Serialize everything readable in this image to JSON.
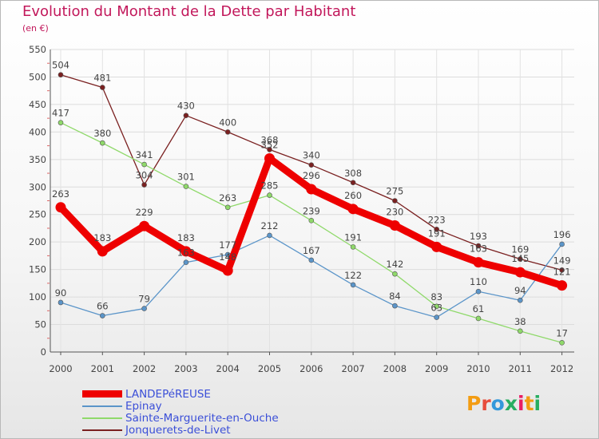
{
  "title": "Evolution du Montant de la Dette par Habitant",
  "unit": "(en €)",
  "brand": {
    "text": "Proxiti",
    "letter_colors": [
      "#f39c12",
      "#e74c3c",
      "#3498db",
      "#27ae60",
      "#e91e63",
      "#f39c12",
      "#27ae60"
    ]
  },
  "chart_data": {
    "type": "line",
    "title": "Evolution du Montant de la Dette par Habitant",
    "ylabel": "(en €)",
    "xlabel": "",
    "ylim": [
      0,
      550
    ],
    "yticks": [
      0,
      50,
      100,
      150,
      200,
      250,
      300,
      350,
      400,
      450,
      500,
      550
    ],
    "categories": [
      "2000",
      "2001",
      "2002",
      "2003",
      "2004",
      "2005",
      "2006",
      "2007",
      "2008",
      "2009",
      "2010",
      "2011",
      "2012"
    ],
    "series": [
      {
        "name": "Jonquerets-de-Livet",
        "color": "#7a2020",
        "emphasis": false,
        "values": [
          504,
          481,
          304,
          430,
          400,
          368,
          340,
          308,
          275,
          223,
          193,
          169,
          149
        ]
      },
      {
        "name": "Sainte-Marguerite-en-Ouche",
        "color": "#8fd96a",
        "emphasis": false,
        "values": [
          417,
          380,
          341,
          301,
          263,
          285,
          239,
          191,
          142,
          83,
          61,
          38,
          17
        ]
      },
      {
        "name": "Epinay",
        "color": "#5b95c9",
        "emphasis": false,
        "values": [
          90,
          66,
          79,
          163,
          177,
          212,
          167,
          122,
          84,
          63,
          110,
          94,
          196
        ]
      },
      {
        "name": "LANDEPéREUSE",
        "color": "#ee0000",
        "emphasis": true,
        "values": [
          263,
          183,
          229,
          183,
          148,
          352,
          296,
          260,
          230,
          191,
          163,
          145,
          121
        ]
      }
    ],
    "data_labels": [
      [
        "504",
        "481",
        "304",
        "430",
        "400",
        "368",
        "340",
        "308",
        "275",
        "223",
        "193",
        "169",
        "149"
      ],
      [
        "417",
        "380",
        "341",
        "301",
        "263",
        "285",
        "239",
        "191",
        "142",
        "83",
        "61",
        "38",
        "17"
      ],
      [
        "90",
        "66",
        "79",
        "163",
        "177",
        "212",
        "167",
        "122",
        "84",
        "63",
        "110",
        "94",
        "196"
      ],
      [
        "263",
        "183",
        "229",
        "183",
        "148",
        "352",
        "296",
        "260",
        "230",
        "191",
        "163",
        "145",
        "121"
      ]
    ],
    "legend": [
      "LANDEPéREUSE",
      "Epinay",
      "Sainte-Marguerite-en-Ouche",
      "Jonquerets-de-Livet"
    ],
    "legend_position": "bottom-left",
    "grid": true
  }
}
